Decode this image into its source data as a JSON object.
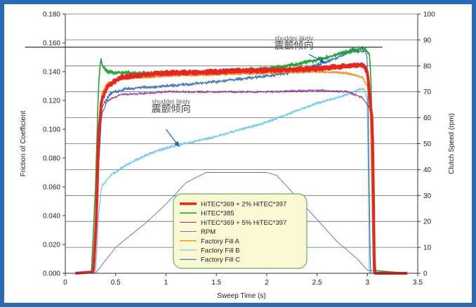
{
  "chart_data": {
    "type": "line",
    "title": "",
    "xlabel": "Sweep Time (s)",
    "ylabel": "Friction of Coefficient",
    "y2label": "Clutch Speed (rpm)",
    "xlim": [
      0,
      3.5
    ],
    "ylim": [
      0,
      0.18
    ],
    "y2lim": [
      0,
      100
    ],
    "x_ticks": [
      "0",
      "0.5",
      "1",
      "1.5",
      "2",
      "2.5",
      "3",
      "3.5"
    ],
    "y_ticks": [
      "0.000",
      "0.020",
      "0.040",
      "0.060",
      "0.080",
      "0.100",
      "0.120",
      "0.140",
      "0.160",
      "0.180"
    ],
    "y2_ticks": [
      "0",
      "10",
      "20",
      "30",
      "40",
      "50",
      "60",
      "70",
      "80",
      "90",
      "100"
    ],
    "grid": "horizontal",
    "legend_placement": "bottom-center",
    "annotations": [
      {
        "text": "震颤倾向",
        "ghost": "shudder likely",
        "x": 2.27,
        "y": 0.155
      },
      {
        "text": "震颤倾向",
        "ghost": "shudder likely",
        "x": 1.05,
        "y": 0.111
      }
    ],
    "series": [
      {
        "name": "HiTEC*369 + 2% HiTEC*397",
        "color": "#e8261f",
        "width": 4,
        "noise": 0.0012,
        "x": [
          0.1,
          0.28,
          0.31,
          0.33,
          0.36,
          0.42,
          0.55,
          0.8,
          1.0,
          1.5,
          2.0,
          2.5,
          2.8,
          2.95,
          3.0,
          3.02,
          3.05,
          3.07,
          3.4
        ],
        "y": [
          0.0,
          0.001,
          0.04,
          0.095,
          0.12,
          0.13,
          0.136,
          0.138,
          0.139,
          0.14,
          0.141,
          0.142,
          0.144,
          0.145,
          0.14,
          0.125,
          0.104,
          0.0,
          0.0
        ]
      },
      {
        "name": "HiTEC*385",
        "color": "#22a33a",
        "width": 1.6,
        "noise": 0.0015,
        "x": [
          0.1,
          0.26,
          0.3,
          0.33,
          0.35,
          0.37,
          0.42,
          0.6,
          1.0,
          1.5,
          2.0,
          2.3,
          2.6,
          2.85,
          2.98,
          3.02,
          3.04,
          3.06,
          3.4
        ],
        "y": [
          0.0,
          0.001,
          0.06,
          0.13,
          0.149,
          0.144,
          0.14,
          0.139,
          0.139,
          0.14,
          0.142,
          0.145,
          0.15,
          0.155,
          0.156,
          0.152,
          0.13,
          0.002,
          0.0
        ]
      },
      {
        "name": "HiTEC*369 + 5% HiTEC*397",
        "color": "#8a2c8f",
        "width": 1.0,
        "noise": 0.0008,
        "x": [
          0.1,
          0.28,
          0.32,
          0.36,
          0.42,
          0.55,
          0.8,
          1.0,
          1.5,
          2.0,
          2.5,
          2.8,
          2.95,
          3.02,
          3.05,
          3.07,
          3.4
        ],
        "y": [
          0.0,
          0.001,
          0.06,
          0.11,
          0.12,
          0.124,
          0.125,
          0.126,
          0.126,
          0.126,
          0.127,
          0.126,
          0.122,
          0.115,
          0.1,
          0.0,
          0.0
        ]
      },
      {
        "name": "RPM",
        "color": "#5b6db6",
        "width": 0.9,
        "noise": 0.0,
        "x": [
          0.1,
          0.3,
          0.5,
          0.8,
          1.0,
          1.2,
          1.4,
          1.5,
          2.0,
          2.1,
          2.4,
          2.7,
          2.9,
          3.0,
          3.4
        ],
        "y": [
          0.0,
          0.0,
          0.018,
          0.035,
          0.048,
          0.063,
          0.07,
          0.07,
          0.07,
          0.068,
          0.045,
          0.022,
          0.01,
          0.002,
          0.0
        ]
      },
      {
        "name": "Factory Fill A",
        "color": "#f08a1c",
        "width": 1.3,
        "noise": 0.0008,
        "x": [
          0.1,
          0.28,
          0.32,
          0.36,
          0.42,
          0.55,
          0.8,
          1.0,
          1.5,
          2.0,
          2.5,
          2.8,
          2.95,
          3.0,
          3.03,
          3.06,
          3.4
        ],
        "y": [
          0.0,
          0.001,
          0.07,
          0.125,
          0.132,
          0.135,
          0.136,
          0.137,
          0.138,
          0.139,
          0.14,
          0.139,
          0.136,
          0.13,
          0.11,
          0.0,
          0.0
        ]
      },
      {
        "name": "Factory Fill B",
        "color": "#6fc8ec",
        "width": 1.3,
        "noise": 0.0009,
        "x": [
          0.1,
          0.3,
          0.33,
          0.36,
          0.45,
          0.6,
          0.8,
          1.0,
          1.5,
          2.0,
          2.5,
          2.8,
          2.93,
          2.97,
          3.0,
          3.02,
          3.4
        ],
        "y": [
          0.0,
          0.0,
          0.04,
          0.06,
          0.068,
          0.075,
          0.082,
          0.087,
          0.095,
          0.105,
          0.118,
          0.124,
          0.128,
          0.128,
          0.12,
          0.0,
          0.0
        ]
      },
      {
        "name": "Factory Fill C",
        "color": "#1d5fa8",
        "width": 1.0,
        "noise": 0.0012,
        "x": [
          0.1,
          0.28,
          0.32,
          0.36,
          0.45,
          0.6,
          0.8,
          1.0,
          1.5,
          2.0,
          2.3,
          2.6,
          2.85,
          2.98,
          3.0,
          3.03,
          3.4
        ],
        "y": [
          0.0,
          0.001,
          0.06,
          0.115,
          0.125,
          0.128,
          0.129,
          0.13,
          0.133,
          0.137,
          0.14,
          0.147,
          0.154,
          0.154,
          0.15,
          0.0,
          0.0
        ]
      }
    ]
  }
}
